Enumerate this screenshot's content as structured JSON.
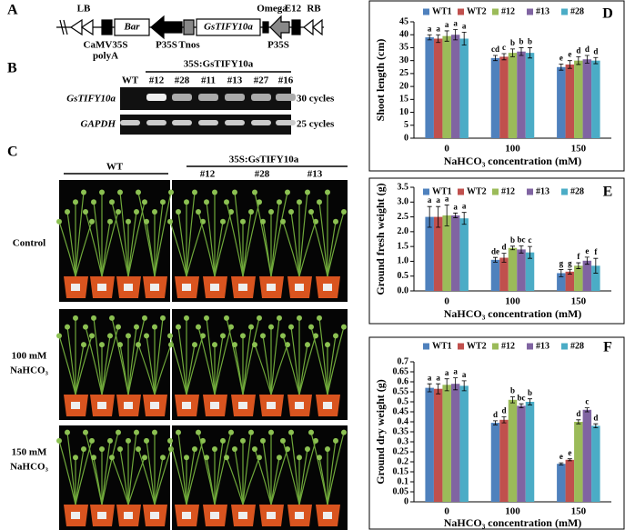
{
  "panel_labels": [
    "A",
    "B",
    "C",
    "D",
    "E",
    "F"
  ],
  "construct": {
    "LB": "LB",
    "RB": "RB",
    "bar": "Bar",
    "gene": "GsTIFY10a",
    "omega": "Omega",
    "e12": "E12",
    "terminator": [
      "CaMV35S",
      "polyA"
    ],
    "p35s_1": "P35S",
    "tnos": "Tnos",
    "p35s_2": "P35S"
  },
  "gel": {
    "group": "35S:GsTIFY10a",
    "lanes": [
      "WT",
      "#12",
      "#28",
      "#11",
      "#13",
      "#27",
      "#16"
    ],
    "rows": [
      {
        "gene": "GsTIFY10a",
        "cycles": "30 cycles"
      },
      {
        "gene": "GAPDH",
        "cycles": "25 cycles"
      }
    ]
  },
  "photos": {
    "wt": "WT",
    "group": "35S:GsTIFY10a",
    "lines": [
      "#12",
      "#28",
      "#13"
    ],
    "rows": [
      [
        "Control"
      ],
      [
        "100 mM",
        "NaHCO₃"
      ],
      [
        "150 mM",
        "NaHCO₃"
      ]
    ]
  },
  "chart_data": [
    {
      "type": "bar",
      "y_label": "Shoot length (cm)",
      "x_label": "NaHCO₃ concentration (mM)",
      "legend": "top",
      "categories": [
        "0",
        "100",
        "150"
      ],
      "ylim": [
        0,
        45
      ],
      "yticks": [
        0,
        5,
        10,
        15,
        20,
        25,
        30,
        35,
        40,
        45
      ],
      "series": [
        {
          "name": "WT1",
          "color": "#4f81bd",
          "values": [
            39,
            31,
            27.5
          ],
          "errors": [
            1,
            1,
            1.2
          ],
          "letters": [
            "a",
            "cd",
            "e"
          ]
        },
        {
          "name": "WT2",
          "color": "#c0504d",
          "values": [
            38.5,
            31.5,
            28.5
          ],
          "errors": [
            1.5,
            1.2,
            1.5
          ],
          "letters": [
            "a",
            "c",
            "e"
          ]
        },
        {
          "name": "#12",
          "color": "#9bbb59",
          "values": [
            39.5,
            33,
            30
          ],
          "errors": [
            2,
            1.5,
            1.5
          ],
          "letters": [
            "a",
            "b",
            "d"
          ]
        },
        {
          "name": "#13",
          "color": "#8064a2",
          "values": [
            40,
            33.5,
            30.5
          ],
          "errors": [
            2,
            1.5,
            1.5
          ],
          "letters": [
            "a",
            "b",
            "d"
          ]
        },
        {
          "name": "#28",
          "color": "#4bacc6",
          "values": [
            38.5,
            33,
            30
          ],
          "errors": [
            2.5,
            2,
            1.2
          ],
          "letters": [
            "a",
            "b",
            "d"
          ]
        }
      ]
    },
    {
      "type": "bar",
      "y_label": "Ground fresh weight (g)",
      "x_label": "NaHCO₃ concentration (mM)",
      "legend": "top",
      "categories": [
        "0",
        "100",
        "150"
      ],
      "ylim": [
        0,
        3.5
      ],
      "yticks": [
        {
          "value": 0,
          "label": "0.0"
        },
        0.5,
        {
          "value": 1,
          "label": "1.0"
        },
        1.5,
        {
          "value": 2,
          "label": "2.0"
        },
        2.5,
        {
          "value": 3,
          "label": "3.0"
        },
        3.5
      ],
      "series": [
        {
          "name": "WT1",
          "color": "#4f81bd",
          "values": [
            2.5,
            1.05,
            0.6
          ],
          "errors": [
            0.35,
            0.08,
            0.12
          ],
          "letters": [
            "a",
            "de",
            "g"
          ]
        },
        {
          "name": "WT2",
          "color": "#c0504d",
          "values": [
            2.5,
            1.12,
            0.65
          ],
          "errors": [
            0.35,
            0.15,
            0.08
          ],
          "letters": [
            "a",
            "d",
            "g"
          ]
        },
        {
          "name": "#12",
          "color": "#9bbb59",
          "values": [
            2.55,
            1.45,
            0.85
          ],
          "errors": [
            0.35,
            0.06,
            0.1
          ],
          "letters": [
            "a",
            "b",
            "f"
          ]
        },
        {
          "name": "#13",
          "color": "#8064a2",
          "values": [
            2.55,
            1.4,
            1.02
          ],
          "errors": [
            0.08,
            0.12,
            0.12
          ],
          "letters": [
            "a",
            "bc",
            "e"
          ]
        },
        {
          "name": "#28",
          "color": "#4bacc6",
          "values": [
            2.45,
            1.3,
            0.85
          ],
          "errors": [
            0.2,
            0.2,
            0.25
          ],
          "letters": [
            "a",
            "c",
            "f"
          ]
        }
      ]
    },
    {
      "type": "bar",
      "y_label": "Ground dry weight (g)",
      "x_label": "NaHCO₃ concentration (mM)",
      "legend": "top",
      "categories": [
        "0",
        "100",
        "150"
      ],
      "ylim": [
        0,
        0.7
      ],
      "yticks": [
        0,
        0.05,
        0.1,
        0.15,
        0.2,
        0.25,
        0.3,
        0.35,
        0.4,
        0.45,
        0.5,
        0.55,
        0.6,
        0.65,
        0.7
      ],
      "series": [
        {
          "name": "WT1",
          "color": "#4f81bd",
          "values": [
            0.57,
            0.395,
            0.19
          ],
          "errors": [
            0.02,
            0.01,
            0.005
          ],
          "letters": [
            "a",
            "d",
            "e"
          ]
        },
        {
          "name": "WT2",
          "color": "#c0504d",
          "values": [
            0.565,
            0.41,
            0.21
          ],
          "errors": [
            0.025,
            0.015,
            0.005
          ],
          "letters": [
            "a",
            "d",
            "e"
          ]
        },
        {
          "name": "#12",
          "color": "#9bbb59",
          "values": [
            0.585,
            0.51,
            0.4
          ],
          "errors": [
            0.03,
            0.015,
            0.01
          ],
          "letters": [
            "a",
            "b",
            "d"
          ]
        },
        {
          "name": "#13",
          "color": "#8064a2",
          "values": [
            0.59,
            0.48,
            0.46
          ],
          "errors": [
            0.03,
            0.01,
            0.01
          ],
          "letters": [
            "a",
            "bc",
            "c"
          ]
        },
        {
          "name": "#28",
          "color": "#4bacc6",
          "values": [
            0.58,
            0.5,
            0.38
          ],
          "errors": [
            0.025,
            0.015,
            0.01
          ],
          "letters": [
            "a",
            "b",
            "d"
          ]
        }
      ]
    }
  ]
}
